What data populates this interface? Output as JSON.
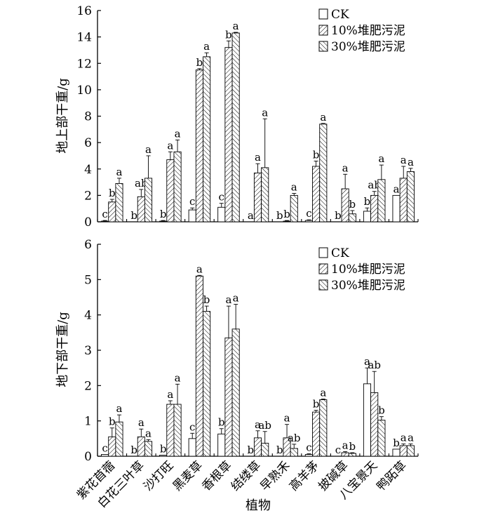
{
  "chart_data": [
    {
      "type": "bar",
      "ylabel": "地上部干重/g",
      "ylim": [
        0,
        16
      ],
      "yticks": [
        0,
        2,
        4,
        6,
        8,
        10,
        12,
        14,
        16
      ],
      "legend": "top-right",
      "categories": [
        "紫花苜蓿",
        "白花三叶草",
        "沙打旺",
        "黑麦草",
        "香根草",
        "结缕草",
        "早熟禾",
        "高羊茅",
        "披碱草",
        "八宝景天",
        "鸭跖草"
      ],
      "series": [
        {
          "name": "CK",
          "values": [
            0.05,
            0,
            0.05,
            0.9,
            1.1,
            0,
            0,
            0.1,
            0,
            0.8,
            2.0
          ],
          "errors": [
            0.05,
            0,
            0.05,
            0.15,
            0.3,
            0,
            0,
            0.05,
            0,
            0.25,
            0
          ],
          "letters": [
            "c",
            "b",
            "b",
            "c",
            "c",
            "a",
            "b",
            "c",
            "b",
            "b",
            "a"
          ]
        },
        {
          "name": "10%堆肥污泥",
          "values": [
            1.5,
            1.9,
            4.7,
            11.5,
            13.2,
            3.7,
            0.05,
            4.2,
            2.5,
            2.0,
            3.3
          ],
          "errors": [
            0.2,
            0.55,
            0.6,
            0.1,
            0.5,
            0.7,
            0.05,
            0.4,
            1.1,
            0.3,
            0.9
          ],
          "letters": [
            "b",
            "ab",
            "a",
            "b",
            "b",
            "a",
            "b",
            "b",
            "a",
            "ab",
            "a"
          ]
        },
        {
          "name": "30%堆肥污泥",
          "values": [
            2.9,
            3.3,
            5.3,
            12.5,
            14.3,
            4.1,
            2.0,
            7.4,
            0.6,
            3.2,
            3.8
          ],
          "errors": [
            0.4,
            1.7,
            0.9,
            0.3,
            0.05,
            3.7,
            0.15,
            0.05,
            0.25,
            1.1,
            0.25
          ],
          "letters": [
            "a",
            "a",
            "a",
            "a",
            "a",
            "a",
            "a",
            "a",
            "b",
            "a",
            "a"
          ]
        }
      ]
    },
    {
      "type": "bar",
      "xlabel": "植物",
      "ylabel": "地下部干重/g",
      "ylim": [
        0,
        6
      ],
      "yticks": [
        0,
        1,
        2,
        3,
        4,
        5,
        6
      ],
      "legend": "top-right",
      "categories": [
        "紫花苜蓿",
        "白花三叶草",
        "沙打旺",
        "黑麦草",
        "香根草",
        "结缕草",
        "早熟禾",
        "高羊茅",
        "披碱草",
        "八宝景天",
        "鸭跖草"
      ],
      "series": [
        {
          "name": "CK",
          "values": [
            0.05,
            0,
            0.03,
            0.5,
            0.63,
            0,
            0,
            0.05,
            0,
            2.05,
            0.2
          ],
          "errors": [
            0,
            0,
            0,
            0.15,
            0.15,
            0,
            0,
            0.02,
            0,
            0.45,
            0
          ],
          "letters": [
            "c",
            "b",
            "b",
            "c",
            "b",
            "b",
            "b",
            "c",
            "c",
            "a",
            "b"
          ]
        },
        {
          "name": "10%堆肥污泥",
          "values": [
            0.55,
            0.55,
            1.47,
            5.1,
            3.35,
            0.52,
            0.52,
            1.25,
            0.1,
            1.8,
            0.3
          ],
          "errors": [
            0.25,
            0.22,
            0.1,
            0.02,
            0.9,
            0.2,
            0.38,
            0.05,
            0.03,
            0.6,
            0.05
          ],
          "letters": [
            "b",
            "a",
            "a",
            "a",
            "a",
            "a",
            "a",
            "b",
            "a",
            "ab",
            "a"
          ]
        },
        {
          "name": "30%堆肥污泥",
          "values": [
            0.97,
            0.42,
            1.47,
            4.1,
            3.6,
            0.37,
            0.22,
            1.6,
            0.08,
            1.02,
            0.3
          ],
          "errors": [
            0.2,
            0.05,
            0.57,
            0.15,
            0.7,
            0.33,
            0.12,
            0.02,
            0.02,
            0.1,
            0.05
          ],
          "letters": [
            "a",
            "a",
            "a",
            "b",
            "a",
            "ab",
            "ab",
            "a",
            "b",
            "b",
            "a"
          ]
        }
      ]
    }
  ]
}
